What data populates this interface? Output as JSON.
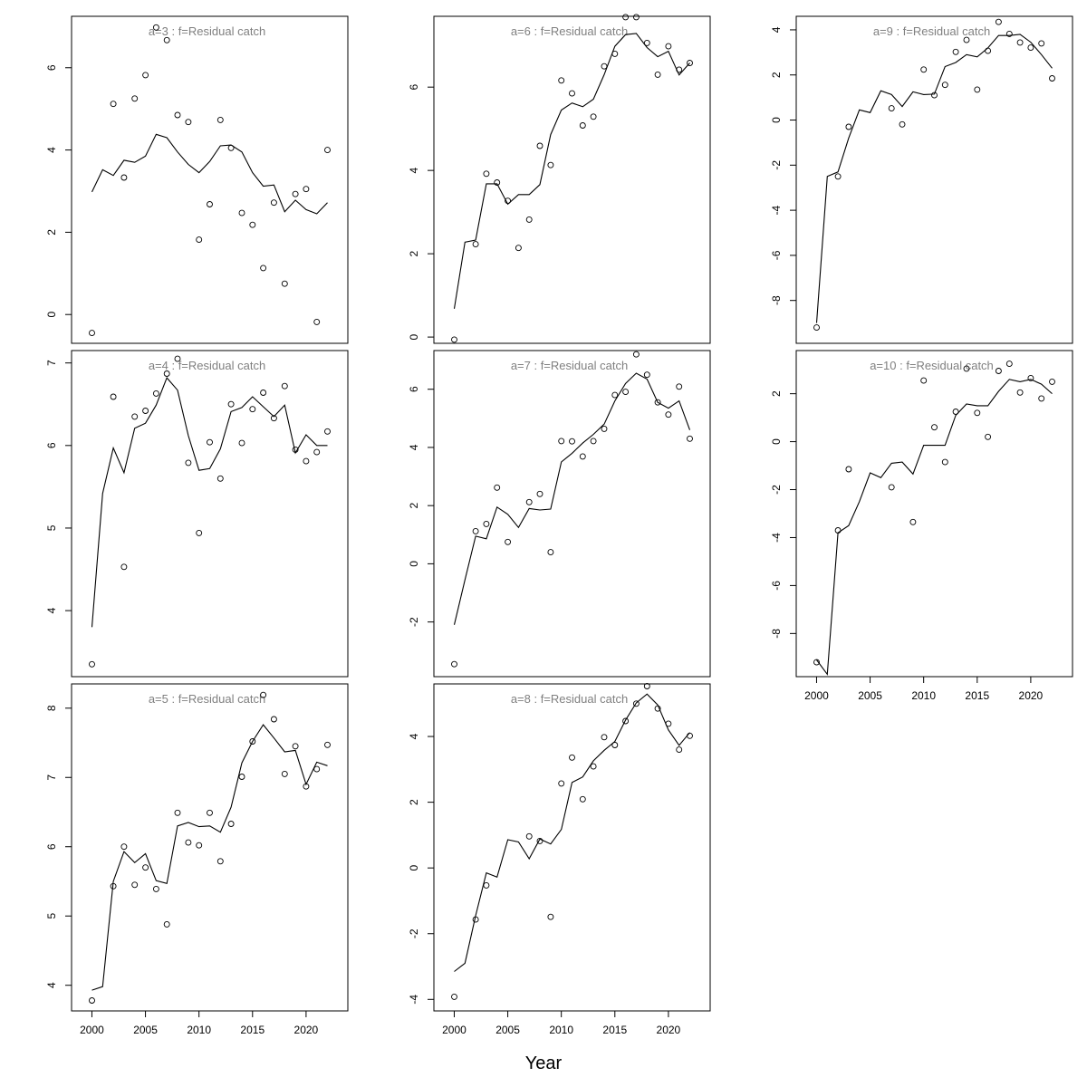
{
  "figure": {
    "xlabel": "Year"
  },
  "chart_data": [
    {
      "type": "line",
      "title": "a=3  :  f=Residual catch",
      "xlim": [
        1998.1,
        2023.9
      ],
      "ylim": [
        -0.7,
        7.25
      ],
      "xticks": [
        2000,
        2005,
        2010,
        2015,
        2020
      ],
      "yticks": [
        0,
        2,
        4,
        6
      ],
      "show_xtick_labels": false,
      "x": [
        2000,
        2001,
        2002,
        2003,
        2004,
        2005,
        2006,
        2007,
        2008,
        2009,
        2010,
        2011,
        2012,
        2013,
        2014,
        2015,
        2016,
        2017,
        2018,
        2019,
        2020,
        2021,
        2022
      ],
      "fitted": [
        2.98,
        3.52,
        3.38,
        3.75,
        3.7,
        3.85,
        4.38,
        4.3,
        3.95,
        3.65,
        3.45,
        3.72,
        4.1,
        4.12,
        3.95,
        3.45,
        3.12,
        3.15,
        2.5,
        2.78,
        2.55,
        2.45,
        2.72
      ],
      "observed": [
        -0.45,
        null,
        5.12,
        3.33,
        5.25,
        5.82,
        6.98,
        6.67,
        4.85,
        4.68,
        1.82,
        2.68,
        4.73,
        4.05,
        2.47,
        2.18,
        1.13,
        2.72,
        0.75,
        2.93,
        3.05,
        -0.18,
        4.0
      ]
    },
    {
      "type": "line",
      "title": "a=4  :  f=Residual catch",
      "xlim": [
        1998.1,
        2023.9
      ],
      "ylim": [
        3.2,
        7.15
      ],
      "xticks": [
        2000,
        2005,
        2010,
        2015,
        2020
      ],
      "yticks": [
        4,
        5,
        6,
        7
      ],
      "show_xtick_labels": false,
      "x": [
        2000,
        2001,
        2002,
        2003,
        2004,
        2005,
        2006,
        2007,
        2008,
        2009,
        2010,
        2011,
        2012,
        2013,
        2014,
        2015,
        2016,
        2017,
        2018,
        2019,
        2020,
        2021,
        2022
      ],
      "fitted": [
        3.8,
        5.42,
        5.97,
        5.67,
        6.21,
        6.27,
        6.49,
        6.82,
        6.67,
        6.12,
        5.7,
        5.72,
        5.96,
        6.41,
        6.46,
        6.59,
        6.47,
        6.35,
        6.49,
        5.91,
        6.13,
        6.0,
        6.0
      ],
      "observed": [
        3.35,
        null,
        6.59,
        4.53,
        6.35,
        6.42,
        6.63,
        6.87,
        7.05,
        5.79,
        4.94,
        6.04,
        5.6,
        6.5,
        6.03,
        6.44,
        6.64,
        6.33,
        6.72,
        5.95,
        5.81,
        5.92,
        6.17
      ]
    },
    {
      "type": "line",
      "title": "a=5  :  f=Residual catch",
      "xlim": [
        1998.1,
        2023.9
      ],
      "ylim": [
        3.63,
        8.35
      ],
      "xticks": [
        2000,
        2005,
        2010,
        2015,
        2020
      ],
      "yticks": [
        4,
        5,
        6,
        7,
        8
      ],
      "show_xtick_labels": true,
      "x": [
        2000,
        2001,
        2002,
        2003,
        2004,
        2005,
        2006,
        2007,
        2008,
        2009,
        2010,
        2011,
        2012,
        2013,
        2014,
        2015,
        2016,
        2017,
        2018,
        2019,
        2020,
        2021,
        2022
      ],
      "fitted": [
        3.93,
        3.98,
        5.5,
        5.93,
        5.77,
        5.9,
        5.51,
        5.47,
        6.3,
        6.35,
        6.29,
        6.3,
        6.21,
        6.57,
        7.21,
        7.52,
        7.76,
        7.57,
        7.37,
        7.39,
        6.9,
        7.22,
        7.17
      ],
      "observed": [
        3.78,
        null,
        5.43,
        6.0,
        5.45,
        5.7,
        5.39,
        4.88,
        6.49,
        6.06,
        6.02,
        6.49,
        5.79,
        6.33,
        7.01,
        7.52,
        8.19,
        7.84,
        7.05,
        7.45,
        6.87,
        7.12,
        7.47
      ]
    },
    {
      "type": "line",
      "title": "a=6  :  f=Residual catch",
      "xlim": [
        1998.1,
        2023.9
      ],
      "ylim": [
        -0.15,
        7.7
      ],
      "xticks": [
        2000,
        2005,
        2010,
        2015,
        2020
      ],
      "yticks": [
        0,
        2,
        4,
        6
      ],
      "show_xtick_labels": false,
      "x": [
        2000,
        2001,
        2002,
        2003,
        2004,
        2005,
        2006,
        2007,
        2008,
        2009,
        2010,
        2011,
        2012,
        2013,
        2014,
        2015,
        2016,
        2017,
        2018,
        2019,
        2020,
        2021,
        2022
      ],
      "fitted": [
        0.68,
        2.28,
        2.33,
        3.68,
        3.68,
        3.19,
        3.42,
        3.42,
        3.66,
        4.86,
        5.45,
        5.62,
        5.53,
        5.71,
        6.3,
        6.98,
        7.26,
        7.29,
        6.95,
        6.73,
        6.86,
        6.29,
        6.58
      ],
      "observed": [
        -0.06,
        null,
        2.23,
        3.92,
        3.71,
        3.27,
        2.14,
        2.82,
        4.59,
        4.13,
        6.16,
        5.85,
        5.08,
        5.29,
        6.5,
        6.8,
        7.68,
        7.68,
        7.06,
        6.3,
        6.98,
        6.42,
        6.58
      ]
    },
    {
      "type": "line",
      "title": "a=7  :  f=Residual catch",
      "xlim": [
        1998.1,
        2023.9
      ],
      "ylim": [
        -3.88,
        7.33
      ],
      "xticks": [
        2000,
        2005,
        2010,
        2015,
        2020
      ],
      "yticks": [
        -2,
        0,
        2,
        4,
        6
      ],
      "show_xtick_labels": false,
      "x": [
        2000,
        2001,
        2002,
        2003,
        2004,
        2005,
        2006,
        2007,
        2008,
        2009,
        2010,
        2011,
        2012,
        2013,
        2014,
        2015,
        2016,
        2017,
        2018,
        2019,
        2020,
        2021,
        2022
      ],
      "fitted": [
        -2.1,
        -0.55,
        0.95,
        0.86,
        1.95,
        1.7,
        1.25,
        1.9,
        1.85,
        1.88,
        3.5,
        3.8,
        4.15,
        4.45,
        4.8,
        5.6,
        6.2,
        6.55,
        6.35,
        5.55,
        5.35,
        5.6,
        4.6
      ],
      "observed": [
        -3.45,
        null,
        1.12,
        1.37,
        2.62,
        0.75,
        null,
        2.12,
        2.4,
        0.4,
        4.22,
        4.21,
        3.69,
        4.22,
        4.64,
        5.8,
        5.91,
        7.2,
        6.5,
        5.55,
        5.13,
        6.09,
        4.3
      ]
    },
    {
      "type": "line",
      "title": "a=8  :  f=Residual catch",
      "xlim": [
        1998.1,
        2023.9
      ],
      "ylim": [
        -4.35,
        5.6
      ],
      "xticks": [
        2000,
        2005,
        2010,
        2015,
        2020
      ],
      "yticks": [
        -4,
        -2,
        0,
        2,
        4
      ],
      "show_xtick_labels": true,
      "x": [
        2000,
        2001,
        2002,
        2003,
        2004,
        2005,
        2006,
        2007,
        2008,
        2009,
        2010,
        2011,
        2012,
        2013,
        2014,
        2015,
        2016,
        2017,
        2018,
        2019,
        2020,
        2021,
        2022
      ],
      "fitted": [
        -3.15,
        -2.9,
        -1.45,
        -0.15,
        -0.28,
        0.86,
        0.79,
        0.28,
        0.88,
        0.73,
        1.17,
        2.6,
        2.77,
        3.26,
        3.58,
        3.85,
        4.5,
        5.02,
        5.29,
        4.96,
        4.2,
        3.73,
        4.12
      ],
      "observed": [
        -3.92,
        null,
        -1.57,
        -0.53,
        null,
        null,
        null,
        0.96,
        0.82,
        -1.49,
        2.57,
        3.36,
        2.09,
        3.09,
        3.98,
        3.74,
        4.47,
        5.0,
        5.53,
        4.85,
        4.39,
        3.6,
        4.02
      ]
    },
    {
      "type": "line",
      "title": "a=9  :  f=Residual catch",
      "xlim": [
        1998.1,
        2023.9
      ],
      "ylim": [
        -9.9,
        4.6
      ],
      "xticks": [
        2000,
        2005,
        2010,
        2015,
        2020
      ],
      "yticks": [
        -8,
        -6,
        -4,
        -2,
        0,
        2,
        4
      ],
      "show_xtick_labels": false,
      "x": [
        2000,
        2001,
        2002,
        2003,
        2004,
        2005,
        2006,
        2007,
        2008,
        2009,
        2010,
        2011,
        2012,
        2013,
        2014,
        2015,
        2016,
        2017,
        2018,
        2019,
        2020,
        2021,
        2022
      ],
      "fitted": [
        -9.0,
        -2.5,
        -2.3,
        -0.8,
        0.45,
        0.33,
        1.3,
        1.13,
        0.6,
        1.25,
        1.13,
        1.15,
        2.37,
        2.55,
        2.9,
        2.8,
        3.2,
        3.75,
        3.75,
        3.8,
        3.45,
        2.9,
        2.3
      ],
      "observed": [
        -9.2,
        null,
        -2.5,
        -0.3,
        null,
        null,
        null,
        0.52,
        -0.19,
        null,
        2.24,
        1.1,
        1.56,
        3.02,
        3.55,
        1.35,
        3.07,
        4.35,
        3.82,
        3.44,
        3.21,
        3.4,
        1.85
      ]
    },
    {
      "type": "line",
      "title": "a=10  :  f=Residual catch",
      "xlim": [
        1998.1,
        2023.9
      ],
      "ylim": [
        -9.8,
        3.8
      ],
      "xticks": [
        2000,
        2005,
        2010,
        2015,
        2020
      ],
      "yticks": [
        -8,
        -6,
        -4,
        -2,
        0,
        2
      ],
      "show_xtick_labels": true,
      "x": [
        2000,
        2001,
        2002,
        2003,
        2004,
        2005,
        2006,
        2007,
        2008,
        2009,
        2010,
        2011,
        2012,
        2013,
        2014,
        2015,
        2016,
        2017,
        2018,
        2019,
        2020,
        2021,
        2022
      ],
      "fitted": [
        -9.1,
        -9.7,
        -3.8,
        -3.5,
        -2.5,
        -1.3,
        -1.5,
        -0.9,
        -0.85,
        -1.35,
        -0.15,
        -0.15,
        -0.15,
        1.1,
        1.57,
        1.5,
        1.5,
        2.1,
        2.6,
        2.5,
        2.6,
        2.4,
        2.0
      ],
      "observed": [
        -9.2,
        null,
        -3.7,
        -1.15,
        null,
        null,
        null,
        -1.9,
        null,
        -3.35,
        2.55,
        0.6,
        -0.85,
        1.25,
        3.05,
        1.2,
        0.2,
        2.95,
        3.25,
        2.05,
        2.65,
        1.8,
        2.5
      ]
    }
  ]
}
